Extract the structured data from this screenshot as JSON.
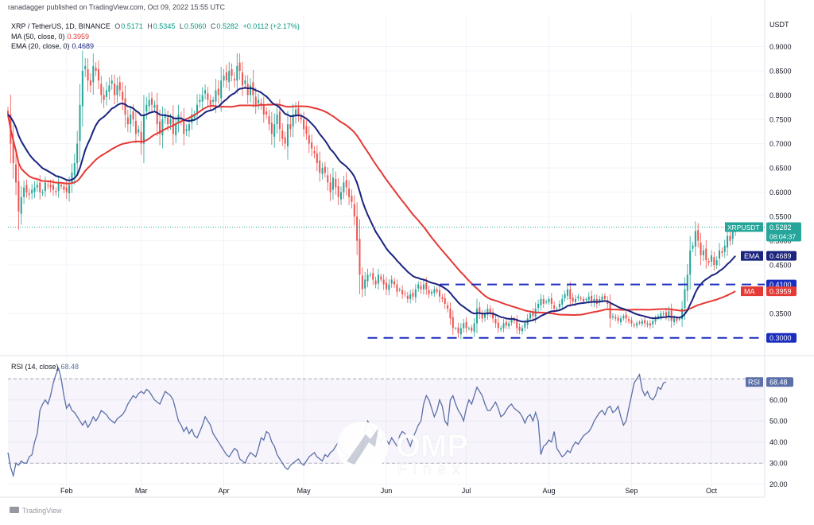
{
  "header": {
    "published": "ranadagger published on TradingView.com, Oct 09, 2022 15:55 UTC",
    "symbol": "XRP / TetherUS, 1D, BINANCE",
    "ohlc": {
      "o_label": "O",
      "o": "0.5171",
      "h_label": "H",
      "h": "0.5345",
      "l_label": "L",
      "l": "0.5060",
      "c_label": "C",
      "c": "0.5282",
      "change": "+0.0112 (+2.17%)"
    },
    "ma_label": "MA (50, close, 0)",
    "ma_value": "0.3959",
    "ema_label": "EMA (20, close, 0)",
    "ema_value": "0.4689"
  },
  "colors": {
    "up": "#26a69a",
    "down": "#ef5350",
    "ema": "#1a237e",
    "ma": "#e53935",
    "rsi": "#5b6fa8",
    "level": "#1a2dbe",
    "grid": "#f0f3fa",
    "axis_text": "#131722"
  },
  "chart_data": [
    {
      "type": "candlestick",
      "name": "XRP / TetherUS",
      "ylabel": "USDT",
      "ylim": [
        0.275,
        0.95
      ],
      "y_ticks": [
        "0.9000",
        "0.8500",
        "0.8000",
        "0.7500",
        "0.7000",
        "0.6500",
        "0.6000",
        "0.5500",
        "0.5000",
        "0.4500",
        "0.3500"
      ],
      "x_ticks": [
        "Feb",
        "Mar",
        "Apr",
        "May",
        "Jun",
        "Jul",
        "Aug",
        "Sep",
        "Oct"
      ],
      "x_tick_dates": [
        "2022-02-01",
        "2022-03-01",
        "2022-04-01",
        "2022-05-01",
        "2022-06-01",
        "2022-07-01",
        "2022-08-01",
        "2022-09-01",
        "2022-10-01"
      ],
      "x_range": [
        "2022-01-10",
        "2022-10-21"
      ],
      "grid": true,
      "candles_date_start": "2022-01-10",
      "candles_close": [
        0.76,
        0.7,
        0.66,
        0.62,
        0.56,
        0.59,
        0.61,
        0.6,
        0.595,
        0.605,
        0.61,
        0.615,
        0.6,
        0.6,
        0.62,
        0.615,
        0.61,
        0.605,
        0.6,
        0.62,
        0.612,
        0.605,
        0.6,
        0.615,
        0.64,
        0.66,
        0.7,
        0.78,
        0.85,
        0.86,
        0.83,
        0.82,
        0.86,
        0.85,
        0.83,
        0.8,
        0.79,
        0.81,
        0.82,
        0.83,
        0.8,
        0.82,
        0.81,
        0.79,
        0.76,
        0.74,
        0.76,
        0.75,
        0.72,
        0.73,
        0.7,
        0.76,
        0.78,
        0.79,
        0.78,
        0.78,
        0.74,
        0.72,
        0.75,
        0.76,
        0.74,
        0.75,
        0.72,
        0.74,
        0.76,
        0.75,
        0.72,
        0.73,
        0.74,
        0.76,
        0.76,
        0.78,
        0.79,
        0.8,
        0.81,
        0.79,
        0.78,
        0.79,
        0.81,
        0.8,
        0.83,
        0.84,
        0.83,
        0.85,
        0.84,
        0.83,
        0.86,
        0.85,
        0.82,
        0.83,
        0.8,
        0.82,
        0.8,
        0.78,
        0.79,
        0.78,
        0.76,
        0.76,
        0.74,
        0.72,
        0.74,
        0.76,
        0.73,
        0.71,
        0.7,
        0.74,
        0.73,
        0.76,
        0.77,
        0.76,
        0.75,
        0.73,
        0.72,
        0.7,
        0.69,
        0.68,
        0.66,
        0.64,
        0.65,
        0.64,
        0.62,
        0.6,
        0.63,
        0.61,
        0.59,
        0.6,
        0.62,
        0.61,
        0.59,
        0.58,
        0.55,
        0.5,
        0.43,
        0.4,
        0.42,
        0.43,
        0.43,
        0.42,
        0.41,
        0.43,
        0.42,
        0.41,
        0.4,
        0.41,
        0.42,
        0.41,
        0.395,
        0.4,
        0.39,
        0.39,
        0.38,
        0.39,
        0.385,
        0.4,
        0.41,
        0.4,
        0.41,
        0.4,
        0.39,
        0.395,
        0.4,
        0.395,
        0.385,
        0.38,
        0.37,
        0.36,
        0.34,
        0.32,
        0.32,
        0.31,
        0.32,
        0.33,
        0.32,
        0.32,
        0.315,
        0.33,
        0.36,
        0.35,
        0.34,
        0.35,
        0.36,
        0.35,
        0.34,
        0.33,
        0.32,
        0.32,
        0.33,
        0.325,
        0.33,
        0.34,
        0.335,
        0.32,
        0.315,
        0.32,
        0.33,
        0.34,
        0.35,
        0.345,
        0.36,
        0.37,
        0.38,
        0.37,
        0.375,
        0.38,
        0.37,
        0.36,
        0.36,
        0.37,
        0.38,
        0.39,
        0.4,
        0.38,
        0.375,
        0.38,
        0.385,
        0.38,
        0.375,
        0.38,
        0.385,
        0.375,
        0.38,
        0.37,
        0.38,
        0.385,
        0.38,
        0.37,
        0.34,
        0.345,
        0.34,
        0.335,
        0.34,
        0.345,
        0.34,
        0.335,
        0.33,
        0.325,
        0.33,
        0.33,
        0.335,
        0.33,
        0.33,
        0.325,
        0.335,
        0.34,
        0.345,
        0.35,
        0.35,
        0.345,
        0.355,
        0.335,
        0.34,
        0.335,
        0.34,
        0.36,
        0.4,
        0.43,
        0.48,
        0.49,
        0.52,
        0.5,
        0.47,
        0.48,
        0.46,
        0.455,
        0.47,
        0.45,
        0.46,
        0.48,
        0.475,
        0.49,
        0.51,
        0.5,
        0.52,
        0.5282
      ],
      "last_price_label": "XRPUSDT",
      "last_price": "0.5282",
      "countdown": "08:04:37",
      "ema_tag": "EMA",
      "ema_value": "0.4689",
      "ma_tag": "MA",
      "ma_value": "0.3959",
      "levels": [
        {
          "value": 0.41,
          "label": "0.4100",
          "from": "2022-06-21"
        },
        {
          "value": 0.3,
          "label": "0.3000",
          "from": "2022-05-25"
        }
      ]
    },
    {
      "type": "line",
      "name": "RSI (14, close)",
      "label": "RSI (14, close)",
      "value": "68.48",
      "tag": "RSI",
      "ylim": [
        15,
        78
      ],
      "y_ticks": [
        "60.00",
        "50.00",
        "40.00",
        "30.00",
        "20.00"
      ],
      "bands": [
        70,
        30
      ],
      "values": [
        35,
        28,
        24,
        30,
        29,
        31,
        30,
        30,
        33,
        34,
        40,
        44,
        55,
        58,
        60,
        58,
        62,
        68,
        72,
        75,
        70,
        62,
        56,
        58,
        55,
        54,
        52,
        50,
        48,
        50,
        47,
        49,
        52,
        50,
        52,
        55,
        54,
        53,
        51,
        50,
        49,
        51,
        52,
        53,
        55,
        58,
        60,
        62,
        61,
        63,
        64,
        63,
        65,
        64,
        62,
        60,
        59,
        58,
        61,
        64,
        63,
        62,
        60,
        55,
        50,
        48,
        45,
        47,
        44,
        46,
        43,
        42,
        45,
        48,
        52,
        50,
        48,
        44,
        42,
        40,
        38,
        36,
        34,
        33,
        35,
        37,
        36,
        32,
        31,
        30,
        33,
        35,
        34,
        33,
        37,
        42,
        41,
        45,
        44,
        40,
        38,
        34,
        32,
        30,
        28,
        27,
        29,
        30,
        31,
        32,
        30,
        29,
        31,
        33,
        34,
        35,
        33,
        32,
        31,
        34,
        33,
        35,
        36,
        38,
        40,
        36,
        35,
        34,
        32,
        30,
        31,
        33,
        35,
        37,
        45,
        50,
        48,
        46,
        44,
        42,
        40,
        43,
        41,
        39,
        42,
        40,
        38,
        43,
        45,
        44,
        41,
        38,
        42,
        45,
        48,
        50,
        58,
        62,
        60,
        56,
        52,
        55,
        60,
        57,
        50,
        48,
        60,
        62,
        58,
        55,
        53,
        50,
        56,
        60,
        58,
        62,
        66,
        64,
        62,
        58,
        55,
        55,
        57,
        59,
        56,
        52,
        53,
        55,
        57,
        58,
        56,
        55,
        54,
        52,
        49,
        52,
        53,
        50,
        54,
        50,
        34,
        38,
        39,
        41,
        40,
        45,
        37,
        35,
        33,
        34,
        36,
        35,
        38,
        40,
        39,
        41,
        43,
        44,
        45,
        47,
        50,
        52,
        54,
        55,
        53,
        56,
        57,
        54,
        55,
        57,
        52,
        48,
        50,
        56,
        62,
        68,
        70,
        72,
        65,
        62,
        64,
        61,
        60,
        62,
        66,
        65,
        68,
        68.48
      ]
    }
  ],
  "footer": {
    "logo_text": "TradingView"
  },
  "watermark": {
    "brand": "OMP",
    "sub": "Finex"
  }
}
